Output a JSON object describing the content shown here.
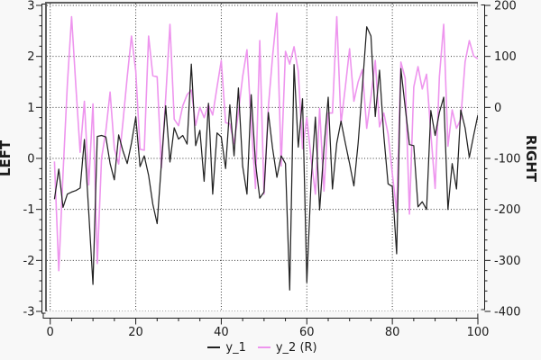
{
  "figure": {
    "background": "#f8f8f8",
    "plot_background": "#ffffff",
    "border_color": "#5f5f5f",
    "grid_color": "#383838",
    "tick_text_color": "#1c1c1c"
  },
  "legend": {
    "items": [
      {
        "label": "y_1",
        "color": "#222222"
      },
      {
        "label": "y_2 (R)",
        "color": "#ee95ee"
      }
    ]
  },
  "chart_data": {
    "type": "line",
    "title": "",
    "grid": true,
    "legend_position": "bottom-center",
    "x_axis": {
      "label": "",
      "min": 0,
      "max": 100,
      "major_tick_step": 20,
      "minor_tick_step": 5,
      "tick_values": [
        0,
        20,
        40,
        60,
        80,
        100
      ],
      "tick_labels": [
        "0",
        "20",
        "40",
        "60",
        "80",
        "100"
      ]
    },
    "left_axis": {
      "label": "LEFT",
      "min": -3,
      "max": 3,
      "major_tick_step": 1,
      "minor_tick_step": 0.2,
      "tick_values": [
        3,
        2,
        1,
        0,
        -1,
        -2,
        -3
      ],
      "tick_labels": [
        "3",
        "2",
        "1",
        "0",
        "-1",
        "-2",
        "-3"
      ]
    },
    "right_axis": {
      "label": "RIGHT",
      "min": -400,
      "max": 200,
      "major_tick_step": 100,
      "minor_tick_step": 20,
      "tick_values": [
        200,
        100,
        0,
        -100,
        -200,
        -300,
        -400
      ],
      "tick_labels": [
        "200",
        "100",
        "0",
        "-100",
        "-200",
        "-300",
        "-400"
      ]
    },
    "series": [
      {
        "name": "y_1",
        "axis": "left",
        "color": "#222222",
        "x": [
          1,
          2,
          3,
          4,
          5,
          6,
          7,
          8,
          9,
          10,
          11,
          12,
          13,
          14,
          15,
          16,
          17,
          18,
          19,
          20,
          21,
          22,
          23,
          24,
          25,
          26,
          27,
          28,
          29,
          30,
          31,
          32,
          33,
          34,
          35,
          36,
          37,
          38,
          39,
          40,
          41,
          42,
          43,
          44,
          45,
          46,
          47,
          48,
          49,
          50,
          51,
          52,
          53,
          54,
          55,
          56,
          57,
          58,
          59,
          60,
          61,
          62,
          63,
          64,
          65,
          66,
          67,
          68,
          69,
          70,
          71,
          72,
          73,
          74,
          75,
          76,
          77,
          78,
          79,
          80,
          81,
          82,
          83,
          84,
          85,
          86,
          87,
          88,
          89,
          90,
          91,
          92,
          93,
          94,
          95,
          96,
          97,
          98,
          99,
          100
        ],
        "values": [
          -0.8,
          -0.21,
          -0.96,
          -0.7,
          -0.66,
          -0.63,
          -0.58,
          0.37,
          -1.05,
          -2.47,
          0.43,
          0.45,
          0.42,
          -0.1,
          -0.42,
          0.46,
          0.15,
          -0.1,
          0.3,
          0.81,
          -0.16,
          0.05,
          -0.33,
          -0.9,
          -1.28,
          -0.1,
          1.03,
          -0.07,
          0.6,
          0.38,
          0.45,
          0.28,
          1.85,
          0.25,
          0.55,
          -0.45,
          1.08,
          -0.7,
          0.5,
          0.42,
          -0.2,
          1.05,
          0.05,
          1.38,
          -0.15,
          -0.7,
          1.25,
          -0.1,
          -0.78,
          -0.66,
          0.9,
          0.2,
          -0.37,
          0.05,
          -0.1,
          -2.58,
          1.84,
          0.22,
          1.17,
          -2.43,
          -0.45,
          0.81,
          -1.01,
          0.2,
          1.2,
          -0.6,
          0.3,
          0.73,
          0.3,
          -0.1,
          -0.54,
          0.3,
          1.4,
          2.58,
          2.4,
          0.82,
          1.73,
          0.44,
          -0.5,
          -0.55,
          -1.87,
          1.76,
          1.0,
          0.27,
          0.25,
          -0.95,
          -0.85,
          -1.0,
          0.94,
          0.45,
          0.9,
          1.2,
          -1.0,
          -0.1,
          -0.6,
          0.95,
          0.6,
          0.02,
          0.45,
          0.85
        ]
      },
      {
        "name": "y_2 (R)",
        "axis": "right",
        "color": "#ee95ee",
        "x": [
          1,
          2,
          3,
          4,
          5,
          6,
          7,
          8,
          9,
          10,
          11,
          12,
          13,
          14,
          15,
          16,
          17,
          18,
          19,
          20,
          21,
          22,
          23,
          24,
          25,
          26,
          27,
          28,
          29,
          30,
          31,
          32,
          33,
          34,
          35,
          36,
          37,
          38,
          39,
          40,
          41,
          42,
          43,
          44,
          45,
          46,
          47,
          48,
          49,
          50,
          51,
          52,
          53,
          54,
          55,
          56,
          57,
          58,
          59,
          60,
          61,
          62,
          63,
          64,
          65,
          66,
          67,
          68,
          69,
          70,
          71,
          72,
          73,
          74,
          75,
          76,
          77,
          78,
          79,
          80,
          81,
          82,
          83,
          84,
          85,
          86,
          87,
          88,
          89,
          90,
          91,
          92,
          93,
          94,
          95,
          96,
          97,
          98,
          99,
          100
        ],
        "values": [
          -106,
          -320,
          -130,
          45,
          178,
          40,
          -88,
          12,
          -152,
          7,
          -306,
          -100,
          -46,
          30,
          -81,
          -111,
          -30,
          60,
          140,
          71,
          -82,
          -84,
          140,
          62,
          60,
          -118,
          20,
          163,
          -23,
          -36,
          3,
          25,
          34,
          -35,
          0,
          -20,
          5,
          -15,
          40,
          92,
          -30,
          -32,
          -71,
          -10,
          60,
          113,
          -30,
          -159,
          131,
          -170,
          0,
          100,
          185,
          -115,
          110,
          85,
          119,
          71,
          -81,
          -20,
          -100,
          -170,
          -2,
          -164,
          -11,
          -11,
          178,
          -32,
          40,
          115,
          12,
          50,
          74,
          -41,
          20,
          92,
          -38,
          -11,
          -52,
          -130,
          -205,
          89,
          57,
          -209,
          40,
          80,
          36,
          65,
          -50,
          -159,
          60,
          163,
          -76,
          -5,
          -41,
          -23,
          89,
          131,
          101,
          95
        ]
      }
    ]
  }
}
